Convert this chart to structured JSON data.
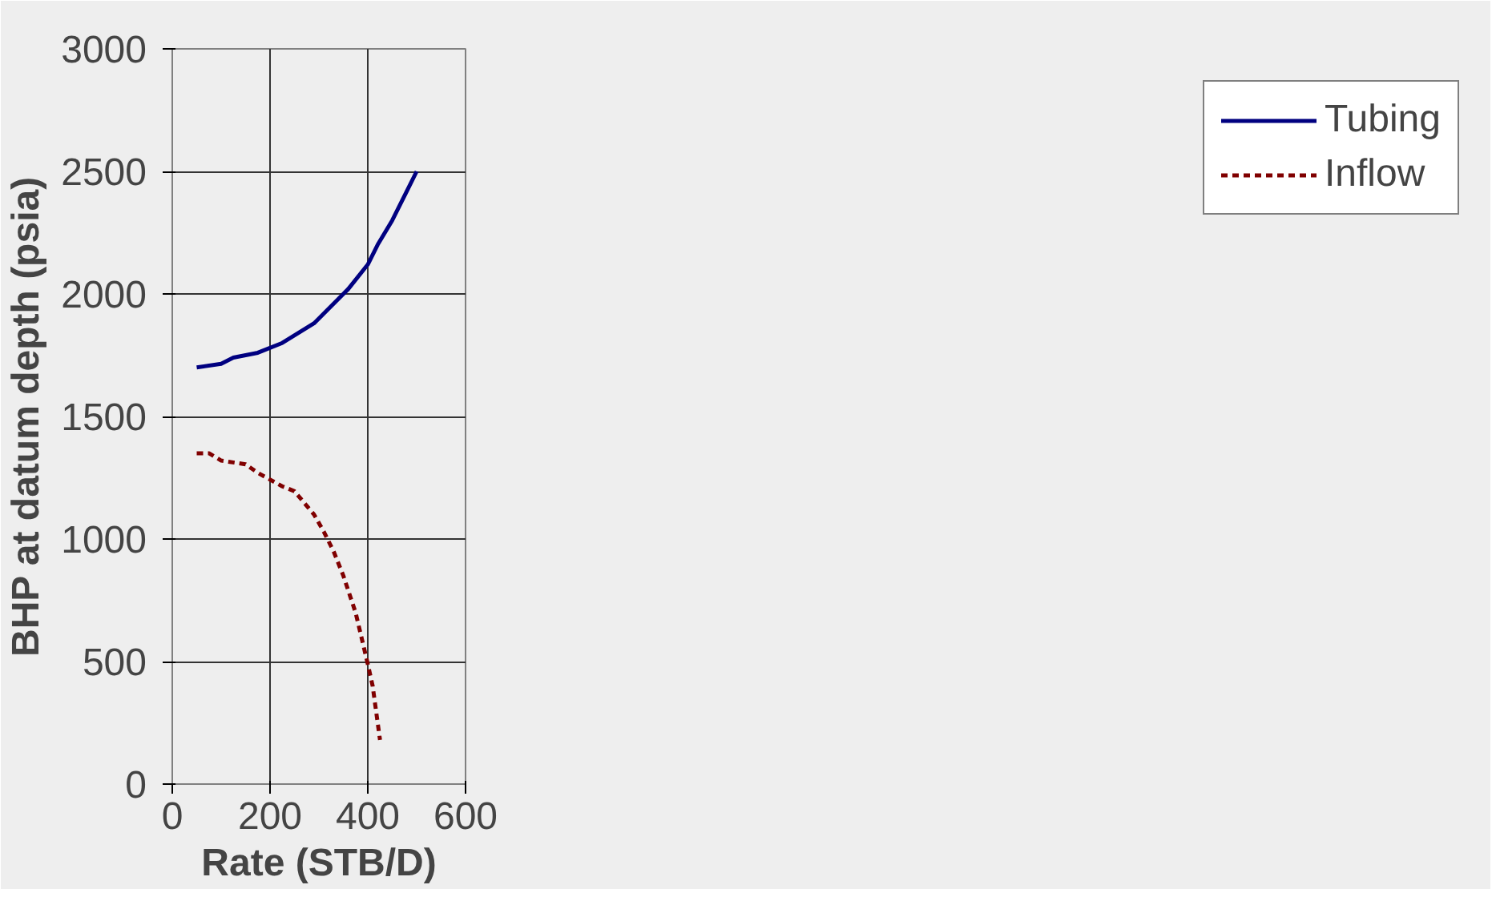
{
  "chart_data": {
    "type": "line",
    "xlabel": "Rate (STB/D)",
    "ylabel": "BHP at datum depth (psia)",
    "xlim": [
      0,
      600
    ],
    "ylim": [
      0,
      3000
    ],
    "xticks": [
      0,
      200,
      400,
      600
    ],
    "yticks": [
      0,
      500,
      1000,
      1500,
      2000,
      2500,
      3000
    ],
    "grid": true,
    "legend": "right",
    "marker": "none",
    "series": [
      {
        "name": "Tubing",
        "color": "#000080",
        "line_style": "solid",
        "x": [
          50,
          100,
          125,
          175,
          225,
          290,
          310,
          350,
          360,
          400,
          420,
          450,
          475,
          500
        ],
        "values": [
          1700,
          1715,
          1740,
          1760,
          1800,
          1880,
          1920,
          2000,
          2020,
          2120,
          2200,
          2300,
          2400,
          2500
        ]
      },
      {
        "name": "Inflow",
        "color": "#800000",
        "line_style": "dashed",
        "x": [
          50,
          75,
          100,
          150,
          175,
          225,
          250,
          290,
          310,
          330,
          350,
          375,
          400,
          410,
          425
        ],
        "values": [
          1350,
          1350,
          1320,
          1305,
          1270,
          1215,
          1195,
          1100,
          1030,
          950,
          850,
          700,
          490,
          400,
          180
        ]
      }
    ]
  }
}
